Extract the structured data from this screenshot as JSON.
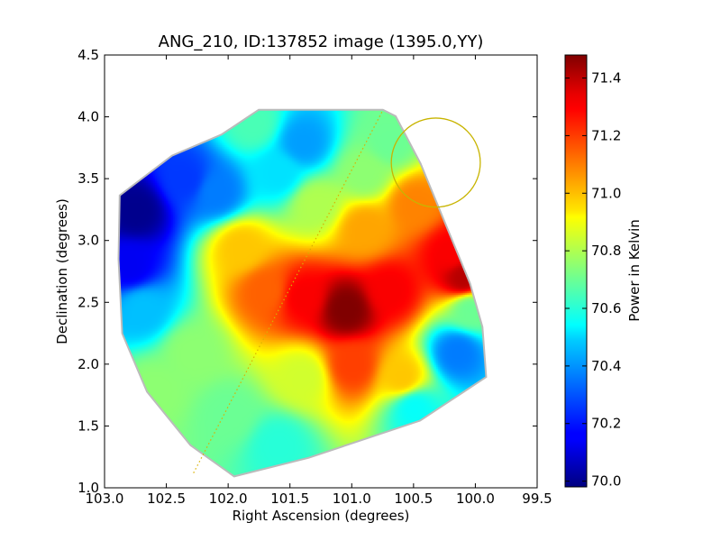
{
  "chart_data": {
    "type": "heatmap",
    "title": "ANG_210, ID:137852 image (1395.0,YY)",
    "xlabel": "Right Ascension (degrees)",
    "ylabel": "Declination (degrees)",
    "xlim": [
      103.0,
      99.5
    ],
    "ylim": [
      1.0,
      4.5
    ],
    "x_ticks": [
      "103.0",
      "102.5",
      "102.0",
      "101.5",
      "101.0",
      "100.5",
      "100.0",
      "99.5"
    ],
    "y_ticks": [
      "1.0",
      "1.5",
      "2.0",
      "2.5",
      "3.0",
      "3.5",
      "4.0",
      "4.5"
    ],
    "colorbar": {
      "label": "Power in Kelvin",
      "range": [
        69.98,
        71.48
      ],
      "ticks": [
        "70.0",
        "70.2",
        "70.4",
        "70.6",
        "70.8",
        "71.0",
        "71.2",
        "71.4"
      ],
      "colormap": "jet"
    },
    "footprint": [
      [
        101.75,
        4.05
      ],
      [
        100.75,
        4.05
      ],
      [
        100.65,
        4.0
      ],
      [
        100.45,
        3.62
      ],
      [
        100.05,
        2.65
      ],
      [
        99.95,
        2.3
      ],
      [
        99.92,
        1.9
      ],
      [
        100.45,
        1.55
      ],
      [
        101.35,
        1.25
      ],
      [
        101.95,
        1.1
      ],
      [
        102.3,
        1.35
      ],
      [
        102.65,
        1.78
      ],
      [
        102.85,
        2.25
      ],
      [
        102.88,
        2.85
      ],
      [
        102.87,
        3.36
      ],
      [
        102.45,
        3.68
      ],
      [
        102.05,
        3.85
      ]
    ],
    "field_values": [
      {
        "x": 102.75,
        "y": 3.25,
        "v": 70.0
      },
      {
        "x": 102.8,
        "y": 2.8,
        "v": 70.15
      },
      {
        "x": 102.35,
        "y": 3.5,
        "v": 70.25
      },
      {
        "x": 102.1,
        "y": 3.4,
        "v": 70.35
      },
      {
        "x": 101.6,
        "y": 3.55,
        "v": 70.5
      },
      {
        "x": 101.4,
        "y": 3.8,
        "v": 70.4
      },
      {
        "x": 102.7,
        "y": 2.45,
        "v": 70.45
      },
      {
        "x": 101.8,
        "y": 3.95,
        "v": 70.65
      },
      {
        "x": 101.3,
        "y": 3.3,
        "v": 70.8
      },
      {
        "x": 100.9,
        "y": 3.1,
        "v": 71.05
      },
      {
        "x": 100.9,
        "y": 3.55,
        "v": 70.75
      },
      {
        "x": 100.5,
        "y": 3.3,
        "v": 71.1
      },
      {
        "x": 100.2,
        "y": 2.9,
        "v": 71.3
      },
      {
        "x": 100.1,
        "y": 2.7,
        "v": 71.4
      },
      {
        "x": 101.05,
        "y": 2.45,
        "v": 71.48
      },
      {
        "x": 101.4,
        "y": 2.55,
        "v": 71.3
      },
      {
        "x": 101.7,
        "y": 2.6,
        "v": 71.15
      },
      {
        "x": 101.9,
        "y": 2.95,
        "v": 71.0
      },
      {
        "x": 100.7,
        "y": 2.6,
        "v": 71.3
      },
      {
        "x": 101.0,
        "y": 2.0,
        "v": 71.2
      },
      {
        "x": 100.6,
        "y": 1.9,
        "v": 71.0
      },
      {
        "x": 101.4,
        "y": 1.9,
        "v": 70.85
      },
      {
        "x": 102.3,
        "y": 2.1,
        "v": 70.75
      },
      {
        "x": 102.0,
        "y": 1.6,
        "v": 70.7
      },
      {
        "x": 101.6,
        "y": 1.35,
        "v": 70.6
      },
      {
        "x": 100.5,
        "y": 1.65,
        "v": 70.55
      },
      {
        "x": 100.15,
        "y": 2.1,
        "v": 70.35
      },
      {
        "x": 100.05,
        "y": 2.45,
        "v": 70.7
      },
      {
        "x": 102.6,
        "y": 1.8,
        "v": 70.75
      },
      {
        "x": 100.7,
        "y": 3.8,
        "v": 70.7
      }
    ],
    "circle": {
      "x": 100.32,
      "y": 3.63,
      "radius_deg": 0.36,
      "color": "#c8b400"
    },
    "dotted_line": {
      "points": [
        [
          102.28,
          1.12
        ],
        [
          100.75,
          4.05
        ]
      ],
      "color": "#d9b000"
    },
    "grid": false
  },
  "colors": {
    "outline": "#bbbbbb",
    "background": "#ffffff"
  }
}
